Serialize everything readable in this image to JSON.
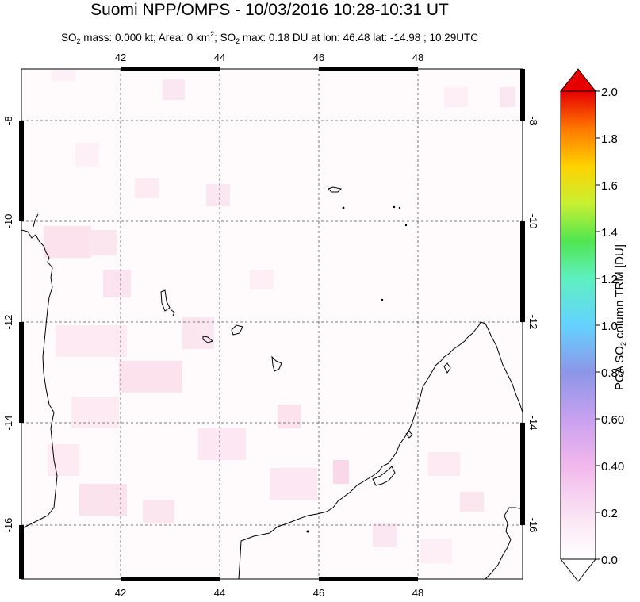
{
  "title": "Suomi NPP/OMPS - 10/03/2016 10:28-10:31 UT",
  "subtitle": {
    "so2_mass": "SO",
    "so2_sub": "2",
    "mass_text": " mass: 0.000 kt; Area: 0 km",
    "area_sup": "2",
    "max_prefix": "; SO",
    "max_sub": "2",
    "max_text": " max: 0.18 DU at lon: 46.48 lat: -14.98 ; 10:29UTC"
  },
  "map": {
    "lon_ticks": [
      "42",
      "44",
      "46",
      "48"
    ],
    "lat_ticks": [
      "-8",
      "-10",
      "-12",
      "-14",
      "-16"
    ],
    "grid": true,
    "coastline_color": "#000000",
    "grid_color": "#555555"
  },
  "colorbar": {
    "ticks": [
      "2.0",
      "1.8",
      "1.6",
      "1.4",
      "1.2",
      "1.0",
      "0.80",
      "0.60",
      "0.40",
      "0.2",
      "0.0"
    ],
    "title_main": "PCA SO",
    "title_sub": "2",
    "title_rest": " column TRM [DU]",
    "min": 0.0,
    "max": 2.0,
    "colors": [
      "#ffffff",
      "#f5c8e8",
      "#c8a0f0",
      "#8c8ce6",
      "#64c8ff",
      "#64f0c8",
      "#50e650",
      "#c8f032",
      "#ffd700",
      "#ff8c00",
      "#ff3c00",
      "#e60000"
    ]
  }
}
